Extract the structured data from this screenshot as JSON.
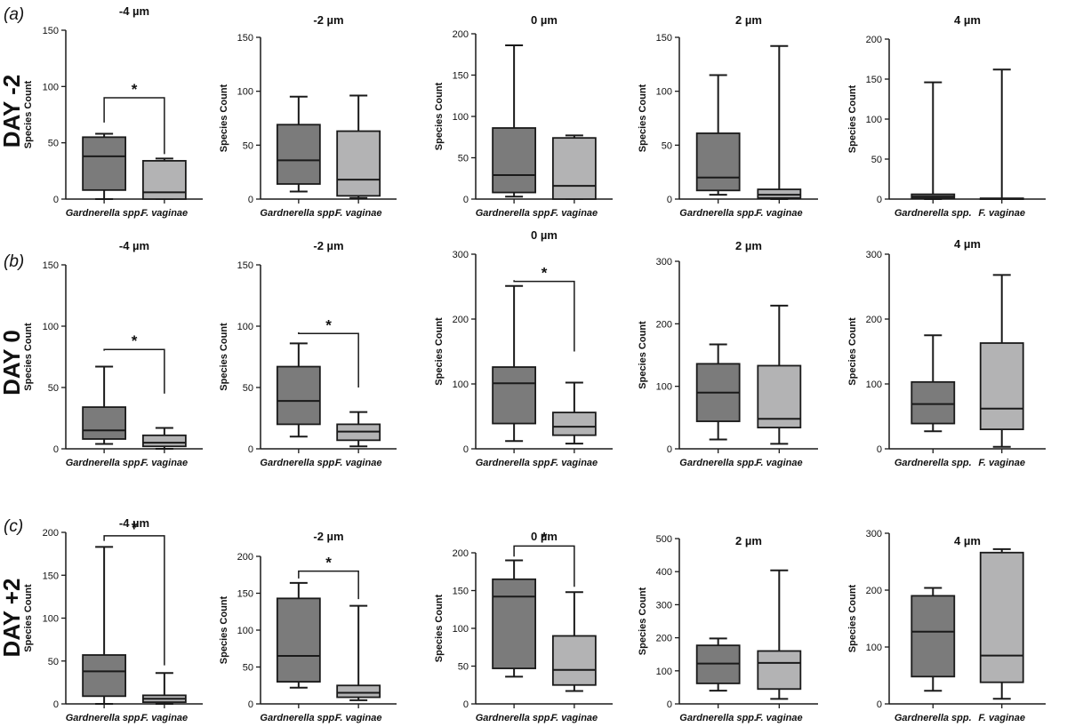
{
  "rows": [
    {
      "panel_letter": "a",
      "day_label": "DAY -2"
    },
    {
      "panel_letter": "b",
      "day_label": "DAY 0"
    },
    {
      "panel_letter": "c",
      "day_label": "DAY +2"
    }
  ],
  "colors": {
    "gardnerella_fill": "#7b7b7b",
    "fvaginae_fill": "#b3b3b4",
    "line": "#1a1a1a"
  },
  "chart_data": [
    {
      "type": "box",
      "row": 0,
      "col": 0,
      "title": "-4 µm",
      "ylabel": "Species Count",
      "categories": [
        "Gardnerella spp.",
        "F. vaginae"
      ],
      "ylim": [
        0,
        150
      ],
      "yticks": [
        0,
        50,
        100,
        150
      ],
      "boxes": [
        {
          "min": 0,
          "q1": 8,
          "median": 38,
          "q3": 55,
          "max": 58
        },
        {
          "min": 0,
          "q1": 0,
          "median": 6,
          "q3": 34,
          "max": 36
        }
      ],
      "significance": {
        "label": "*",
        "left_top": 68,
        "right_top": 40,
        "bar": 90
      }
    },
    {
      "type": "box",
      "row": 0,
      "col": 1,
      "title": "-2 µm",
      "ylabel": "Species Count",
      "categories": [
        "Gardnerella spp.",
        "F. vaginae"
      ],
      "ylim": [
        0,
        150
      ],
      "yticks": [
        0,
        50,
        100,
        150
      ],
      "boxes": [
        {
          "min": 7,
          "q1": 14,
          "median": 36,
          "q3": 69,
          "max": 95
        },
        {
          "min": 1,
          "q1": 3,
          "median": 18,
          "q3": 63,
          "max": 96
        }
      ],
      "significance": null
    },
    {
      "type": "box",
      "row": 0,
      "col": 2,
      "title": "0 µm",
      "ylabel": "Species Count",
      "categories": [
        "Gardnerella spp.",
        "F. vaginae"
      ],
      "ylim": [
        0,
        200
      ],
      "yticks": [
        0,
        50,
        100,
        150,
        200
      ],
      "boxes": [
        {
          "min": 3,
          "q1": 8,
          "median": 29,
          "q3": 86,
          "max": 186
        },
        {
          "min": 0,
          "q1": 0,
          "median": 16,
          "q3": 74,
          "max": 77
        }
      ],
      "significance": null
    },
    {
      "type": "box",
      "row": 0,
      "col": 3,
      "title": "2 µm",
      "ylabel": "Species Count",
      "categories": [
        "Gardnerella spp.",
        "F. vaginae"
      ],
      "ylim": [
        0,
        150
      ],
      "yticks": [
        0,
        50,
        100,
        150
      ],
      "boxes": [
        {
          "min": 4,
          "q1": 8,
          "median": 20,
          "q3": 61,
          "max": 115
        },
        {
          "min": 0,
          "q1": 1,
          "median": 4,
          "q3": 9,
          "max": 142
        }
      ],
      "significance": null
    },
    {
      "type": "box",
      "row": 0,
      "col": 4,
      "title": "4 µm",
      "ylabel": "Species Count",
      "categories": [
        "Gardnerella spp.",
        "F. vaginae"
      ],
      "ylim": [
        0,
        200
      ],
      "yticks": [
        0,
        50,
        100,
        150,
        200
      ],
      "boxes": [
        {
          "min": 0,
          "q1": 1,
          "median": 3,
          "q3": 6,
          "max": 146
        },
        {
          "min": 0,
          "q1": 0,
          "median": 0,
          "q3": 1,
          "max": 162
        }
      ],
      "significance": null
    },
    {
      "type": "box",
      "row": 1,
      "col": 0,
      "title": "-4 µm",
      "ylabel": "Species Count",
      "categories": [
        "Gardnerella spp.",
        "F. vaginae"
      ],
      "ylim": [
        0,
        150
      ],
      "yticks": [
        0,
        50,
        100,
        150
      ],
      "boxes": [
        {
          "min": 4,
          "q1": 8,
          "median": 15,
          "q3": 34,
          "max": 67
        },
        {
          "min": 0,
          "q1": 2,
          "median": 5,
          "q3": 11,
          "max": 17
        }
      ],
      "significance": {
        "label": "*",
        "left_top": 80,
        "right_top": 45,
        "bar": 81
      }
    },
    {
      "type": "box",
      "row": 1,
      "col": 1,
      "title": "-2 µm",
      "ylabel": "Species Count",
      "categories": [
        "Gardnerella spp.",
        "F. vaginae"
      ],
      "ylim": [
        0,
        150
      ],
      "yticks": [
        0,
        50,
        100,
        150
      ],
      "boxes": [
        {
          "min": 10,
          "q1": 20,
          "median": 39,
          "q3": 67,
          "max": 86
        },
        {
          "min": 2,
          "q1": 7,
          "median": 14,
          "q3": 20,
          "max": 30
        }
      ],
      "significance": {
        "label": "*",
        "left_top": 95,
        "right_top": 50,
        "bar": 94
      }
    },
    {
      "type": "box",
      "row": 1,
      "col": 2,
      "title": "0 µm",
      "ylabel": "Species Count",
      "categories": [
        "Gardnerella spp.",
        "F. vaginae"
      ],
      "ylim": [
        0,
        300
      ],
      "yticks": [
        0,
        100,
        200,
        300
      ],
      "boxes": [
        {
          "min": 12,
          "q1": 39,
          "median": 101,
          "q3": 126,
          "max": 251
        },
        {
          "min": 8,
          "q1": 21,
          "median": 34,
          "q3": 56,
          "max": 102
        }
      ],
      "significance": {
        "label": "*",
        "left_top": 260,
        "right_top": 150,
        "bar": 258
      }
    },
    {
      "type": "box",
      "row": 1,
      "col": 3,
      "title": "2 µm",
      "ylabel": "Species Count",
      "categories": [
        "Gardnerella spp.",
        "F. vaginae"
      ],
      "ylim": [
        0,
        300
      ],
      "yticks": [
        0,
        100,
        200,
        300
      ],
      "boxes": [
        {
          "min": 15,
          "q1": 44,
          "median": 90,
          "q3": 136,
          "max": 167
        },
        {
          "min": 8,
          "q1": 34,
          "median": 48,
          "q3": 133,
          "max": 229
        }
      ],
      "significance": null
    },
    {
      "type": "box",
      "row": 1,
      "col": 4,
      "title": "4 µm",
      "ylabel": "Species Count",
      "categories": [
        "Gardnerella spp.",
        "F. vaginae"
      ],
      "ylim": [
        0,
        300
      ],
      "yticks": [
        0,
        100,
        200,
        300
      ],
      "boxes": [
        {
          "min": 27,
          "q1": 39,
          "median": 69,
          "q3": 103,
          "max": 175
        },
        {
          "min": 3,
          "q1": 30,
          "median": 62,
          "q3": 163,
          "max": 268
        }
      ],
      "significance": null
    },
    {
      "type": "box",
      "row": 2,
      "col": 0,
      "title": "-4 µm",
      "ylabel": "Species Count",
      "categories": [
        "Gardnerella spp.",
        "F. vaginae"
      ],
      "ylim": [
        0,
        200
      ],
      "yticks": [
        0,
        50,
        100,
        150,
        200
      ],
      "boxes": [
        {
          "min": 0,
          "q1": 9,
          "median": 38,
          "q3": 57,
          "max": 183
        },
        {
          "min": 0,
          "q1": 2,
          "median": 6,
          "q3": 10,
          "max": 36
        }
      ],
      "significance": {
        "label": "*",
        "left_top": 190,
        "right_top": 45,
        "bar": 196
      }
    },
    {
      "type": "box",
      "row": 2,
      "col": 1,
      "title": "-2 µm",
      "ylabel": "Species Count",
      "categories": [
        "Gardnerella spp.",
        "F. vaginae"
      ],
      "ylim": [
        0,
        200
      ],
      "yticks": [
        0,
        50,
        100,
        150,
        200
      ],
      "boxes": [
        {
          "min": 22,
          "q1": 30,
          "median": 65,
          "q3": 143,
          "max": 164
        },
        {
          "min": 5,
          "q1": 9,
          "median": 15,
          "q3": 25,
          "max": 133
        }
      ],
      "significance": {
        "label": "*",
        "left_top": 170,
        "right_top": 142,
        "bar": 180
      }
    },
    {
      "type": "box",
      "row": 2,
      "col": 2,
      "title": "0 µm",
      "ylabel": "Species Count",
      "categories": [
        "Gardnerella spp.",
        "F. vaginae"
      ],
      "ylim": [
        0,
        200
      ],
      "yticks": [
        0,
        50,
        100,
        150,
        200
      ],
      "boxes": [
        {
          "min": 36,
          "q1": 47,
          "median": 142,
          "q3": 165,
          "max": 190
        },
        {
          "min": 17,
          "q1": 25,
          "median": 45,
          "q3": 90,
          "max": 148
        }
      ],
      "significance": {
        "label": "*",
        "left_top": 195,
        "right_top": 155,
        "bar": 209
      }
    },
    {
      "type": "box",
      "row": 2,
      "col": 3,
      "title": "2 µm",
      "ylabel": "Species Count",
      "categories": [
        "Gardnerella spp.",
        "F. vaginae"
      ],
      "ylim": [
        0,
        500
      ],
      "yticks": [
        0,
        100,
        200,
        300,
        400,
        500
      ],
      "boxes": [
        {
          "min": 40,
          "q1": 62,
          "median": 122,
          "q3": 177,
          "max": 198
        },
        {
          "min": 15,
          "q1": 45,
          "median": 124,
          "q3": 160,
          "max": 404
        }
      ],
      "significance": null
    },
    {
      "type": "box",
      "row": 2,
      "col": 4,
      "title": "4 µm",
      "ylabel": "Species Count",
      "categories": [
        "Gardnerella spp.",
        "F. vaginae"
      ],
      "ylim": [
        0,
        300
      ],
      "yticks": [
        0,
        100,
        200,
        300
      ],
      "boxes": [
        {
          "min": 23,
          "q1": 48,
          "median": 127,
          "q3": 190,
          "max": 204
        },
        {
          "min": 9,
          "q1": 38,
          "median": 85,
          "q3": 266,
          "max": 272
        }
      ],
      "significance": null
    }
  ]
}
